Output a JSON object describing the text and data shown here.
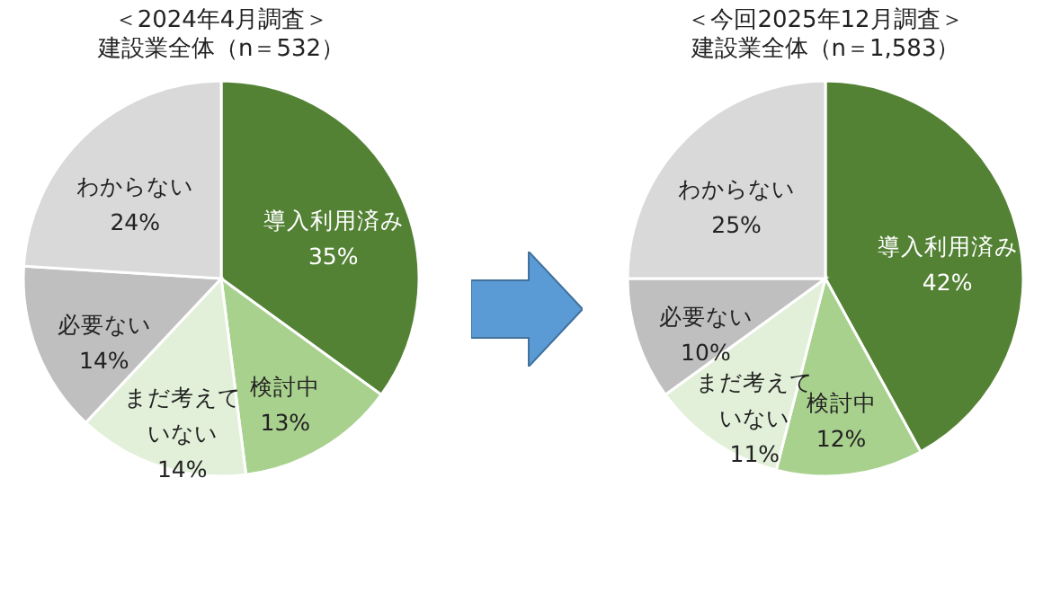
{
  "chart_data": [
    {
      "type": "pie",
      "title": "＜2024年4月調査＞",
      "subtitle": "建設業全体（n＝532）",
      "categories": [
        "導入利用済み",
        "検討中",
        "まだ考えていない",
        "必要ない",
        "わからない"
      ],
      "values": [
        35,
        13,
        14,
        14,
        24
      ],
      "value_labels": [
        "35%",
        "13%",
        "14%",
        "14%",
        "24%"
      ],
      "colors": [
        "#548235",
        "#a9d18e",
        "#e2f0d9",
        "#bfbfbf",
        "#d9d9d9"
      ],
      "legend": false
    },
    {
      "type": "pie",
      "title": "＜今回2025年12月調査＞",
      "subtitle": "建設業全体（n＝1,583）",
      "categories": [
        "導入利用済み",
        "検討中",
        "まだ考えていない",
        "必要ない",
        "わからない"
      ],
      "values": [
        42,
        12,
        11,
        10,
        25
      ],
      "value_labels": [
        "42%",
        "12%",
        "11%",
        "10%",
        "25%"
      ],
      "colors": [
        "#548235",
        "#a9d18e",
        "#e2f0d9",
        "#bfbfbf",
        "#d9d9d9"
      ],
      "legend": false
    }
  ]
}
